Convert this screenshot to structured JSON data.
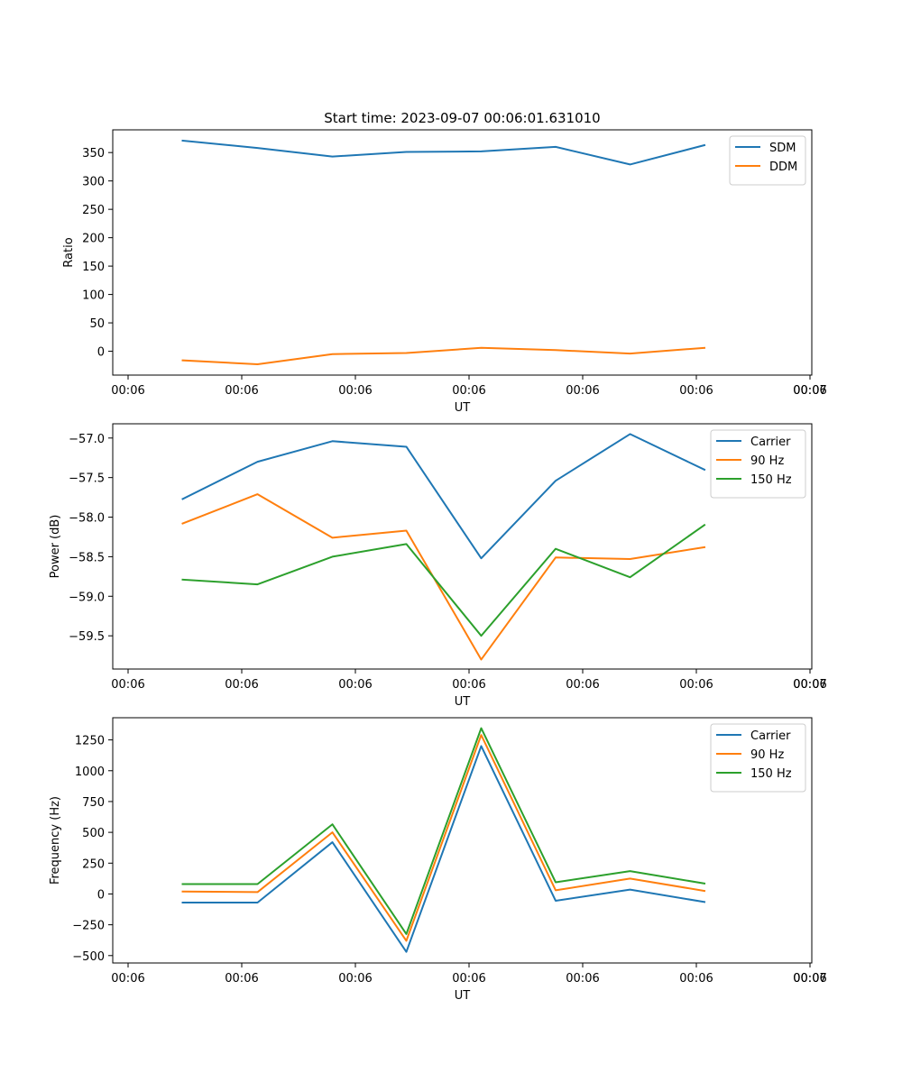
{
  "chart_data": [
    {
      "type": "line",
      "title": "Start time: 2023-09-07 00:06:01.631010",
      "xlabel": "UT",
      "ylabel": "Ratio",
      "x_tick_labels": [
        "00:06",
        "00:06",
        "00:06",
        "00:06",
        "00:06",
        "00:06",
        "00:06",
        "00:07"
      ],
      "yticks": [
        0,
        50,
        100,
        150,
        200,
        250,
        300,
        350
      ],
      "ylim": [
        -42,
        390
      ],
      "legend": "top-right",
      "grid": false,
      "series": [
        {
          "name": "SDM",
          "color": "#1f77b4",
          "values": [
            371,
            358,
            343,
            351,
            352,
            360,
            329,
            363
          ]
        },
        {
          "name": "DDM",
          "color": "#ff7f0e",
          "values": [
            -16,
            -23,
            -5,
            -3,
            6,
            2,
            -4,
            6
          ]
        }
      ]
    },
    {
      "type": "line",
      "title": "",
      "xlabel": "UT",
      "ylabel": "Power (dB)",
      "x_tick_labels": [
        "00:06",
        "00:06",
        "00:06",
        "00:06",
        "00:06",
        "00:06",
        "00:06",
        "00:07"
      ],
      "yticks": [
        -59.5,
        -59.0,
        -58.5,
        -58.0,
        -57.5,
        -57.0
      ],
      "ytick_labels": [
        "−59.5",
        "−59.0",
        "−58.5",
        "−58.0",
        "−57.5",
        "−57.0"
      ],
      "ylim": [
        -59.92,
        -56.82
      ],
      "legend": "top-right",
      "grid": false,
      "series": [
        {
          "name": "Carrier",
          "color": "#1f77b4",
          "values": [
            -57.77,
            -57.3,
            -57.04,
            -57.11,
            -58.52,
            -57.54,
            -56.95,
            -57.4
          ]
        },
        {
          "name": "90 Hz",
          "color": "#ff7f0e",
          "values": [
            -58.08,
            -57.71,
            -58.26,
            -58.17,
            -59.8,
            -58.51,
            -58.53,
            -58.38
          ]
        },
        {
          "name": "150 Hz",
          "color": "#2ca02c",
          "values": [
            -58.79,
            -58.85,
            -58.5,
            -58.34,
            -59.5,
            -58.4,
            -58.76,
            -58.1
          ]
        }
      ]
    },
    {
      "type": "line",
      "title": "",
      "xlabel": "UT",
      "ylabel": "Frequency (Hz)",
      "x_tick_labels": [
        "00:06",
        "00:06",
        "00:06",
        "00:06",
        "00:06",
        "00:06",
        "00:06",
        "00:07"
      ],
      "yticks": [
        -500,
        -250,
        0,
        250,
        500,
        750,
        1000,
        1250
      ],
      "ytick_labels": [
        "−500",
        "−250",
        "0",
        "250",
        "500",
        "750",
        "1000",
        "1250"
      ],
      "ylim": [
        -560,
        1430
      ],
      "legend": "top-right",
      "grid": false,
      "series": [
        {
          "name": "Carrier",
          "color": "#1f77b4",
          "values": [
            -70,
            -70,
            420,
            -470,
            1200,
            -55,
            35,
            -65
          ]
        },
        {
          "name": "90 Hz",
          "color": "#ff7f0e",
          "values": [
            20,
            15,
            500,
            -380,
            1290,
            30,
            125,
            25
          ]
        },
        {
          "name": "150 Hz",
          "color": "#2ca02c",
          "values": [
            80,
            80,
            565,
            -325,
            1345,
            95,
            185,
            85
          ]
        }
      ]
    }
  ]
}
